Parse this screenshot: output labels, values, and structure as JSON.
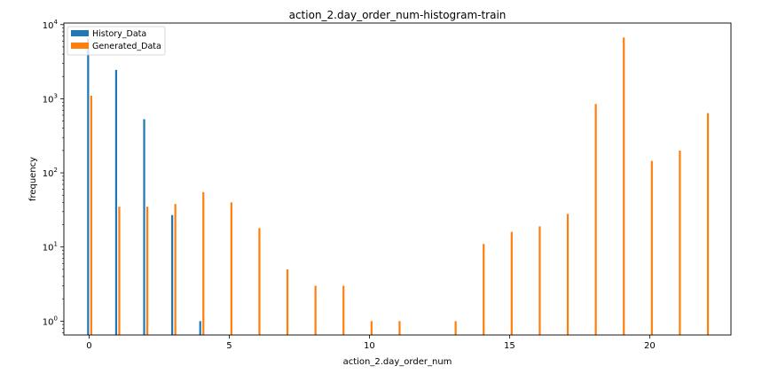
{
  "chart_data": {
    "type": "bar",
    "title": "action_2.day_order_num-histogram-train",
    "xlabel": "action_2.day_order_num",
    "ylabel": "frequency",
    "yscale": "log",
    "xlim": [
      -0.9,
      22.9
    ],
    "ylim": [
      0.65,
      10500
    ],
    "xticks": [
      0,
      5,
      10,
      15,
      20
    ],
    "yticks": [
      {
        "value": 1,
        "base": "10",
        "exp": "0"
      },
      {
        "value": 10,
        "base": "10",
        "exp": "1"
      },
      {
        "value": 100,
        "base": "10",
        "exp": "2"
      },
      {
        "value": 1000,
        "base": "10",
        "exp": "3"
      },
      {
        "value": 10000,
        "base": "10",
        "exp": "4"
      }
    ],
    "legend_position": "top-left",
    "grid": false,
    "series": [
      {
        "name": "History_Data",
        "color": "#1f77b4",
        "x": [
          0,
          1,
          2,
          3,
          4
        ],
        "values": [
          6500,
          2450,
          530,
          27,
          1
        ]
      },
      {
        "name": "Generated_Data",
        "color": "#ff7f0e",
        "x": [
          0,
          1,
          2,
          3,
          4,
          5,
          6,
          7,
          8,
          9,
          10,
          11,
          13,
          14,
          15,
          16,
          17,
          18,
          19,
          20,
          21,
          22
        ],
        "values": [
          1100,
          35,
          35,
          38,
          55,
          40,
          18,
          5,
          3,
          3,
          1,
          1,
          1,
          11,
          16,
          19,
          28,
          850,
          6700,
          145,
          200,
          640
        ]
      }
    ]
  }
}
